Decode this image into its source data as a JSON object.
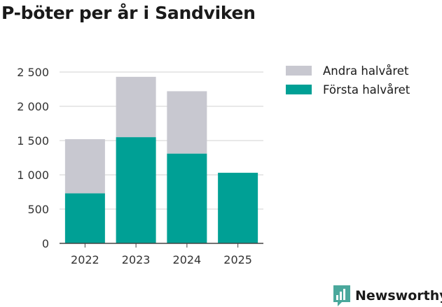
{
  "chart_data": {
    "type": "bar",
    "stacked": true,
    "title": "P-böter per år i Sandviken",
    "categories": [
      "2022",
      "2023",
      "2024",
      "2025"
    ],
    "series": [
      {
        "name": "Första halvåret",
        "color": "#00a095",
        "values": [
          730,
          1550,
          1310,
          1030
        ]
      },
      {
        "name": "Andra halvåret",
        "color": "#c8c8d0",
        "values": [
          790,
          880,
          910,
          0
        ]
      }
    ],
    "legend_order": [
      "Andra halvåret",
      "Första halvåret"
    ],
    "y_ticks": [
      "0",
      "500",
      "1 000",
      "1 500",
      "2 000",
      "2 500"
    ],
    "y_tick_values": [
      0,
      500,
      1000,
      1500,
      2000,
      2500
    ],
    "ylim": [
      0,
      2500
    ],
    "xlabel": "",
    "ylabel": "",
    "grid": true,
    "legend_position": "right"
  },
  "brand": {
    "name": "Newsworthy",
    "color": "#4aa89c",
    "icon": "newsworthy-logo-icon"
  }
}
